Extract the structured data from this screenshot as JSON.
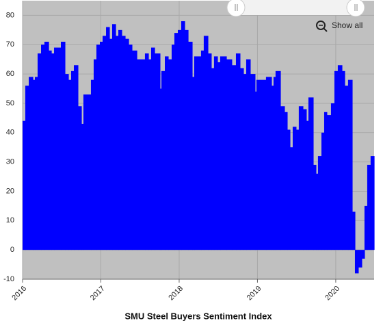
{
  "chart_data": {
    "type": "area",
    "step": true,
    "title": "SMU Steel Buyers Sentiment Index",
    "button": "Show all",
    "color": "#0000ff",
    "background": "#c0c0c0",
    "grid": true,
    "xlim": [
      2016,
      2020.49
    ],
    "xticks": [
      2016,
      2017,
      2018,
      2019,
      2020
    ],
    "ylim": [
      -10,
      85
    ],
    "yticks": [
      -10,
      0,
      10,
      20,
      30,
      40,
      50,
      60,
      70,
      80
    ],
    "x": [
      2016.0,
      2016.035,
      2016.079,
      2016.131,
      2016.157,
      2016.192,
      2016.236,
      2016.279,
      2016.332,
      2016.367,
      2016.402,
      2016.489,
      2016.541,
      2016.585,
      2016.62,
      2016.655,
      2016.707,
      2016.751,
      2016.777,
      2016.873,
      2016.908,
      2016.943,
      2016.987,
      2017.022,
      2017.066,
      2017.109,
      2017.144,
      2017.188,
      2017.223,
      2017.266,
      2017.31,
      2017.354,
      2017.397,
      2017.459,
      2017.563,
      2017.607,
      2017.642,
      2017.686,
      2017.755,
      2017.773,
      2017.817,
      2017.86,
      2017.904,
      2017.939,
      2017.983,
      2018.026,
      2018.07,
      2018.114,
      2018.166,
      2018.192,
      2018.279,
      2018.314,
      2018.367,
      2018.41,
      2018.445,
      2018.489,
      2018.524,
      2018.603,
      2018.672,
      2018.725,
      2018.777,
      2018.821,
      2018.856,
      2018.908,
      2018.969,
      2018.987,
      2019.109,
      2019.179,
      2019.205,
      2019.231,
      2019.293,
      2019.345,
      2019.38,
      2019.415,
      2019.45,
      2019.493,
      2019.528,
      2019.581,
      2019.624,
      2019.651,
      2019.712,
      2019.747,
      2019.773,
      2019.817,
      2019.852,
      2019.886,
      2019.939,
      2019.983,
      2020.026,
      2020.079,
      2020.114,
      2020.157,
      2020.21,
      2020.245,
      2020.288,
      2020.332,
      2020.367,
      2020.402,
      2020.445
    ],
    "values": [
      44,
      56,
      59,
      58,
      59,
      67,
      70,
      71,
      68,
      67,
      69,
      71,
      60,
      58,
      61,
      63,
      49,
      43,
      53,
      58,
      65,
      70,
      71,
      73,
      76,
      72,
      77,
      73,
      75,
      73,
      72,
      70,
      68,
      65,
      67,
      65,
      69,
      67,
      55,
      61,
      66,
      65,
      70,
      74,
      75,
      78,
      75,
      71,
      59,
      66,
      68,
      73,
      67,
      62,
      66,
      64,
      66,
      65,
      63,
      67,
      62,
      60,
      65,
      60,
      54,
      58,
      59,
      56,
      59,
      61,
      49,
      47,
      41,
      35,
      42,
      41,
      49,
      48,
      44,
      52,
      29,
      26,
      32,
      40,
      47,
      46,
      50,
      61,
      63,
      61,
      56,
      58,
      13,
      -8,
      -6,
      -3,
      15,
      29,
      32
    ]
  }
}
